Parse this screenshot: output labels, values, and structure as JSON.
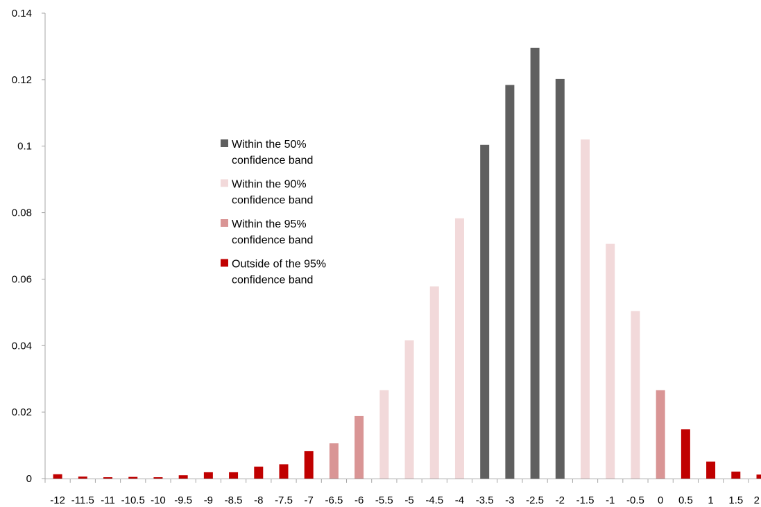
{
  "chart_data": {
    "type": "bar",
    "title": "",
    "xlabel": "",
    "ylabel": "",
    "ylim": [
      0,
      0.14
    ],
    "yticks": [
      {
        "value": 0,
        "label": "0"
      },
      {
        "value": 0.02,
        "label": "0.02"
      },
      {
        "value": 0.04,
        "label": "0.04"
      },
      {
        "value": 0.06,
        "label": "0.06"
      },
      {
        "value": 0.08,
        "label": "0.08"
      },
      {
        "value": 0.1,
        "label": "0.1"
      },
      {
        "value": 0.12,
        "label": "0.12"
      },
      {
        "value": 0.14,
        "label": "0.14"
      }
    ],
    "grid": false,
    "legend_placement": "center-left",
    "categories": [
      "-12",
      "-11.5",
      "-11",
      "-10.5",
      "-10",
      "-9.5",
      "-9",
      "-8.5",
      "-8",
      "-7.5",
      "-7",
      "-6.5",
      "-6",
      "-5.5",
      "-5",
      "-4.5",
      "-4",
      "-3.5",
      "-3",
      "-2.5",
      "-2",
      "-1.5",
      "-1",
      "-0.5",
      "0",
      "0.5",
      "1",
      "1.5",
      "2"
    ],
    "values": [
      0.0013,
      0.0006,
      0.0004,
      0.0005,
      0.0004,
      0.001,
      0.0019,
      0.0019,
      0.0036,
      0.0043,
      0.0083,
      0.0106,
      0.0188,
      0.0266,
      0.0416,
      0.0578,
      0.0783,
      0.1004,
      0.1184,
      0.1296,
      0.1202,
      0.102,
      0.0706,
      0.0504,
      0.0266,
      0.0148,
      0.0051,
      0.0021,
      0.0012
    ],
    "band": [
      3,
      3,
      3,
      3,
      3,
      3,
      3,
      3,
      3,
      3,
      3,
      2,
      2,
      1,
      1,
      1,
      1,
      0,
      0,
      0,
      0,
      1,
      1,
      1,
      2,
      3,
      3,
      3,
      3
    ],
    "legend": [
      {
        "lines": [
          "Within the 50%",
          "confidence band"
        ],
        "color": "#5f5f5f"
      },
      {
        "lines": [
          "Within the 90%",
          "confidence band"
        ],
        "color": "#f2d9da"
      },
      {
        "lines": [
          "Within the 95%",
          "confidence band"
        ],
        "color": "#d99595"
      },
      {
        "lines": [
          "Outside of the 95%",
          "confidence band"
        ],
        "color": "#c00000"
      }
    ],
    "axis_color": "#a6a6a6"
  }
}
